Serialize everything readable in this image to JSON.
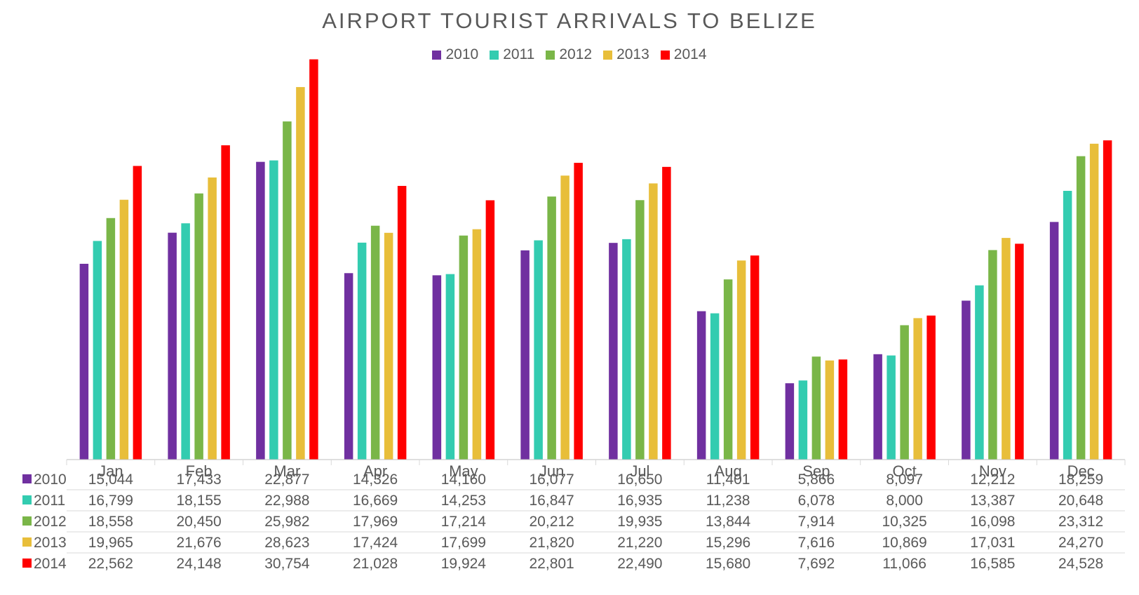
{
  "chart_data": {
    "type": "bar",
    "title": "AIRPORT TOURIST ARRIVALS TO BELIZE",
    "categories": [
      "Jan",
      "Feb",
      "Mar",
      "Apr",
      "May",
      "Jun",
      "Jul",
      "Aug",
      "Sep",
      "Oct",
      "Nov",
      "Dec"
    ],
    "series": [
      {
        "name": "2010",
        "color": "#7030A0",
        "values": [
          15044,
          17433,
          22877,
          14326,
          14160,
          16077,
          16650,
          11401,
          5866,
          8097,
          12212,
          18259
        ]
      },
      {
        "name": "2011",
        "color": "#33CCB0",
        "values": [
          16799,
          18155,
          22988,
          16669,
          14253,
          16847,
          16935,
          11238,
          6078,
          8000,
          13387,
          20648
        ]
      },
      {
        "name": "2012",
        "color": "#7AB648",
        "values": [
          18558,
          20450,
          25982,
          17969,
          17214,
          20212,
          19935,
          13844,
          7914,
          10325,
          16098,
          23312
        ]
      },
      {
        "name": "2013",
        "color": "#E8BE3A",
        "values": [
          19965,
          21676,
          28623,
          17424,
          17699,
          21820,
          21220,
          15296,
          7616,
          10869,
          17031,
          24270
        ]
      },
      {
        "name": "2014",
        "color": "#FF0000",
        "values": [
          22562,
          24148,
          30754,
          21028,
          19924,
          22801,
          22490,
          15680,
          7692,
          11066,
          16585,
          24528
        ]
      }
    ],
    "table_display": [
      [
        "15,044",
        "17,433",
        "22,877",
        "14,326",
        "14,160",
        "16,077",
        "16,650",
        "11,401",
        "5,866",
        "8,097",
        "12,212",
        "18,259"
      ],
      [
        "16,799",
        "18,155",
        "22,988",
        "16,669",
        "14,253",
        "16,847",
        "16,935",
        "11,238",
        "6,078",
        "8,000",
        "13,387",
        "20,648"
      ],
      [
        "18,558",
        "20,450",
        "25,982",
        "17,969",
        "17,214",
        "20,212",
        "19,935",
        "13,844",
        "7,914",
        "10,325",
        "16,098",
        "23,312"
      ],
      [
        "19,965",
        "21,676",
        "28,623",
        "17,424",
        "17,699",
        "21,820",
        "21,220",
        "15,296",
        "7,616",
        "10,869",
        "17,031",
        "24,270"
      ],
      [
        "22,562",
        "24,148",
        "30,754",
        "21,028",
        "19,924",
        "22,801",
        "22,490",
        "15,680",
        "7,692",
        "11,066",
        "16,585",
        "24,528"
      ]
    ],
    "ylim": [
      0,
      31000
    ],
    "grid": false,
    "legend_position": "top-center",
    "data_table": true
  }
}
